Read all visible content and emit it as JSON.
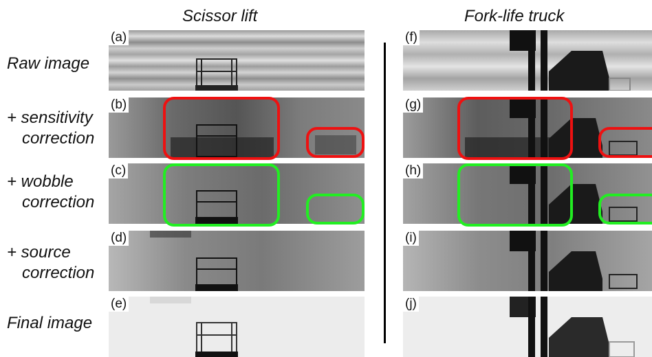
{
  "columns": {
    "left_title": "Scissor lift",
    "right_title": "Fork-life truck"
  },
  "rows": [
    {
      "line1": "Raw image",
      "line2": ""
    },
    {
      "line1": "+ sensitivity",
      "line2": "correction"
    },
    {
      "line1": "+ wobble",
      "line2": "correction"
    },
    {
      "line1": "+ source",
      "line2": "correction"
    },
    {
      "line1": "Final image",
      "line2": ""
    }
  ],
  "panels": {
    "left": [
      "(a)",
      "(b)",
      "(c)",
      "(d)",
      "(e)"
    ],
    "right": [
      "(f)",
      "(g)",
      "(h)",
      "(i)",
      "(j)"
    ]
  },
  "colors": {
    "artifact_box": "#ee1111",
    "corrected_box": "#22ee22",
    "divider": "#000000"
  }
}
